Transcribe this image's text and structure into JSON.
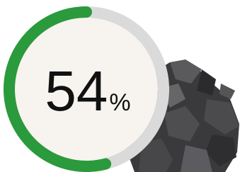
{
  "chart_data": {
    "type": "progress-ring",
    "value": 54,
    "unit": "%",
    "color": "#2a9a3c",
    "track_color": "#dadada",
    "fill_color": "#f7f4ef"
  }
}
